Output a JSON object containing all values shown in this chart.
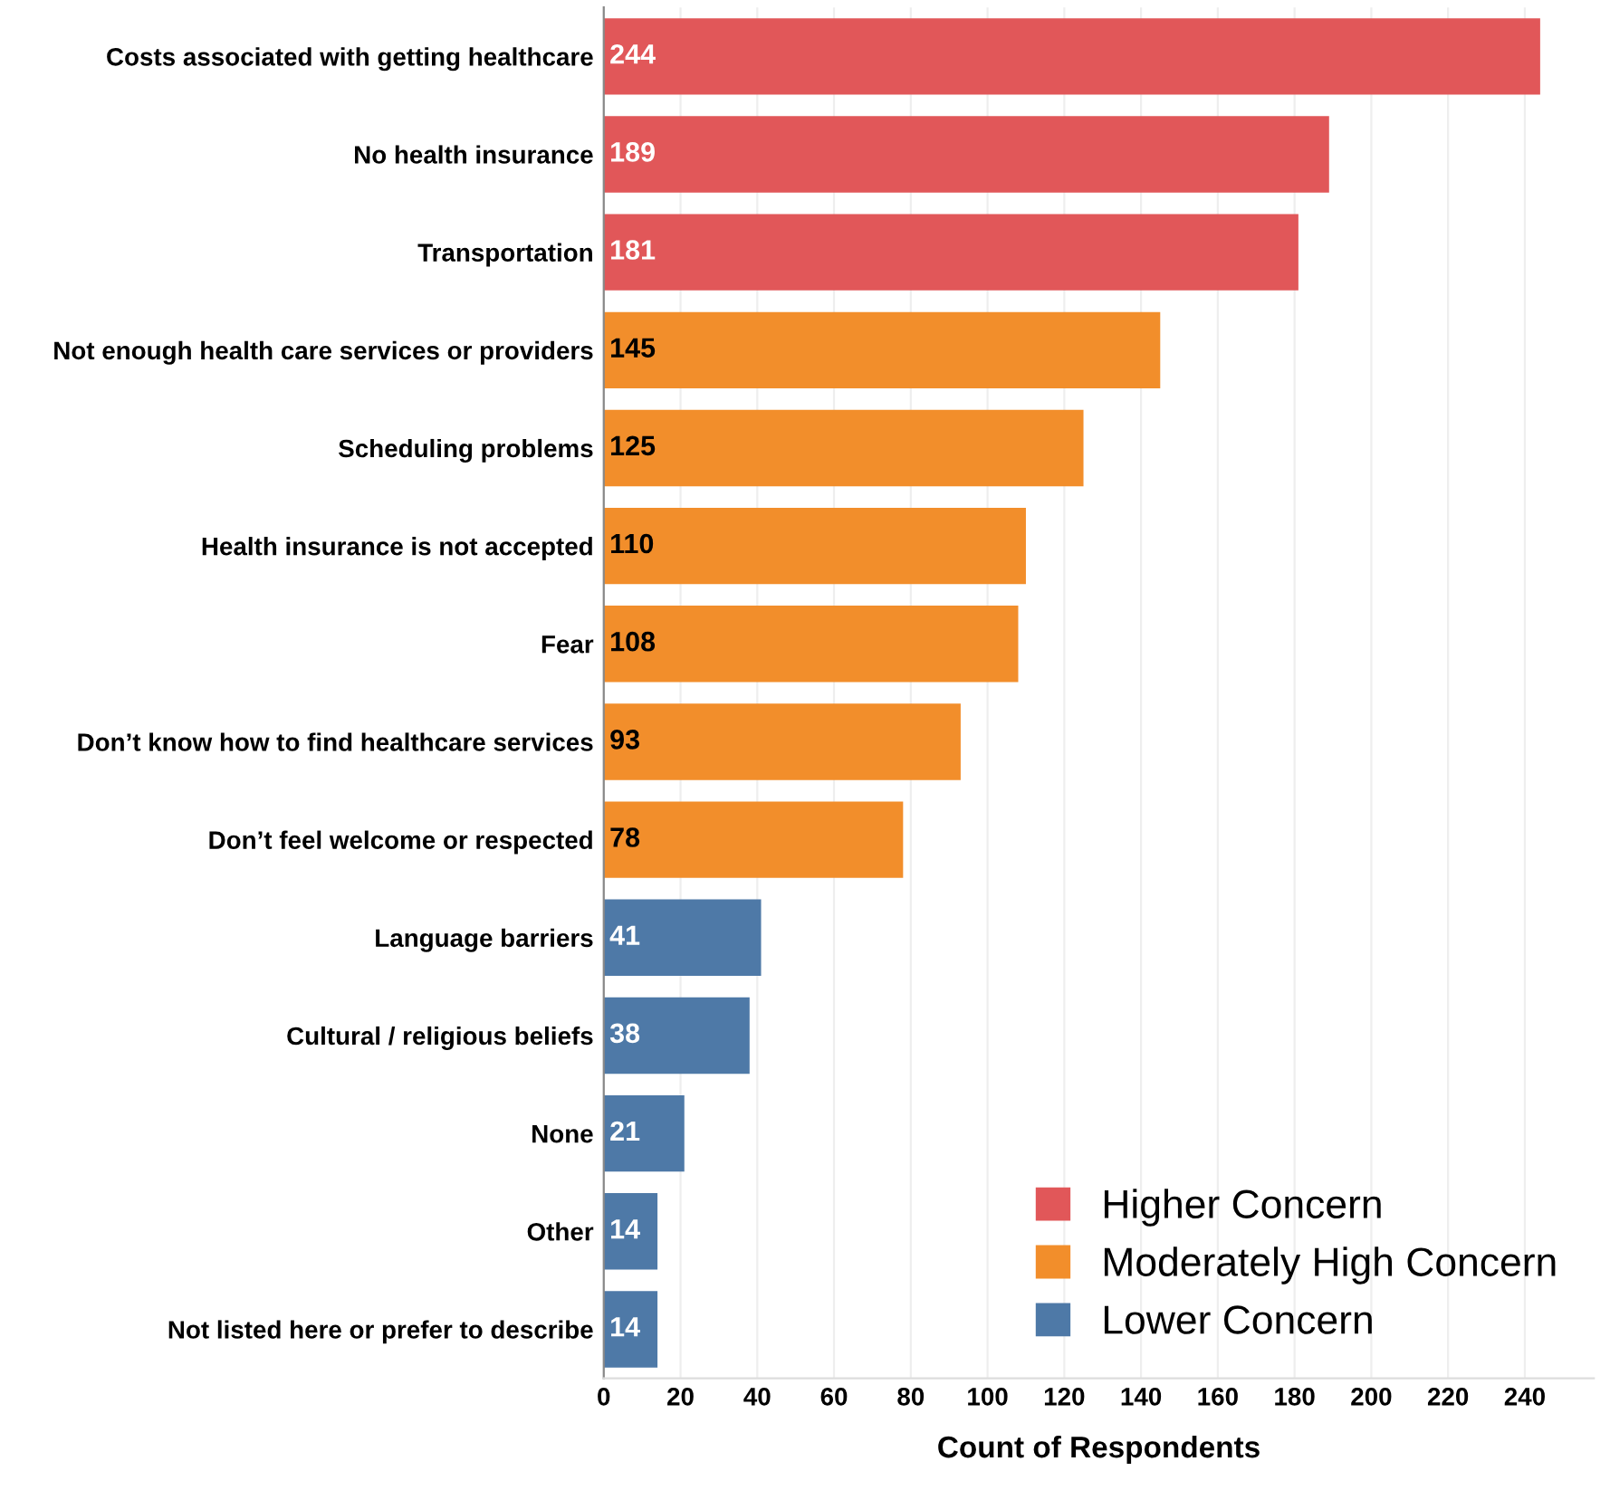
{
  "chart_data": {
    "type": "bar",
    "orientation": "horizontal",
    "xlabel": "Count of Respondents",
    "categories": [
      "Costs associated with getting healthcare",
      "No health insurance",
      "Transportation",
      "Not enough health care services or providers",
      "Scheduling problems",
      "Health insurance is not accepted",
      "Fear",
      "Don’t know how to find healthcare services",
      "Don’t feel welcome or respected",
      "Language barriers",
      "Cultural / religious beliefs",
      "None",
      "Other",
      "Not listed here or prefer to describe"
    ],
    "series": [
      {
        "name": "Higher Concern",
        "color": "#e15759",
        "values": [
          244,
          189,
          181,
          null,
          null,
          null,
          null,
          null,
          null,
          null,
          null,
          null,
          null,
          null
        ]
      },
      {
        "name": "Moderately High Concern",
        "color": "#f28e2b",
        "values": [
          null,
          null,
          null,
          145,
          125,
          110,
          108,
          93,
          78,
          null,
          null,
          null,
          null,
          null
        ]
      },
      {
        "name": "Lower Concern",
        "color": "#4e79a7",
        "values": [
          null,
          null,
          null,
          null,
          null,
          null,
          null,
          null,
          null,
          41,
          38,
          21,
          14,
          14
        ]
      }
    ],
    "xlim": [
      0,
      258
    ],
    "xticks": [
      0,
      20,
      40,
      60,
      80,
      100,
      120,
      140,
      160,
      180,
      200,
      220,
      240
    ],
    "grid": "x",
    "legend": "bottom right",
    "data_labels": true
  }
}
